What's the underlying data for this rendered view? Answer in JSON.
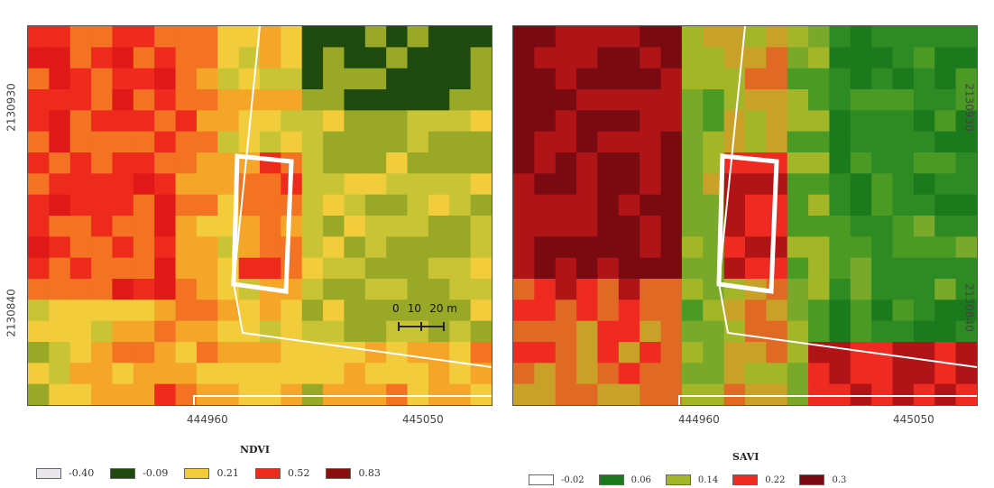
{
  "panels": [
    {
      "id": "ndvi",
      "legend_title": "NDVI",
      "legend": [
        {
          "label": "-0.40",
          "color": "#e9e6ee"
        },
        {
          "label": "-0.09",
          "color": "#1e4a10"
        },
        {
          "label": "0.21",
          "color": "#f2cc3a"
        },
        {
          "label": "0.52",
          "color": "#ee2a1c"
        },
        {
          "label": "0.83",
          "color": "#8a1010"
        }
      ],
      "y_ticks": [
        "2130930",
        "2130840"
      ],
      "x_ticks": [
        "444960",
        "445050"
      ],
      "scale_bar": {
        "labels": [
          "0",
          "10",
          "20 m"
        ]
      }
    },
    {
      "id": "savi",
      "legend_title": "SAVI",
      "legend": [
        {
          "label": "-0.02",
          "color": "#ffffff"
        },
        {
          "label": "0.06",
          "color": "#1b7a1c"
        },
        {
          "label": "0.14",
          "color": "#a2b628"
        },
        {
          "label": "0.22",
          "color": "#ef2a20"
        },
        {
          "label": "0.3",
          "color": "#7a0a12"
        }
      ],
      "y_ticks": [
        "2130930",
        "2130840"
      ],
      "x_ticks": [
        "444960",
        "445050"
      ]
    }
  ]
}
